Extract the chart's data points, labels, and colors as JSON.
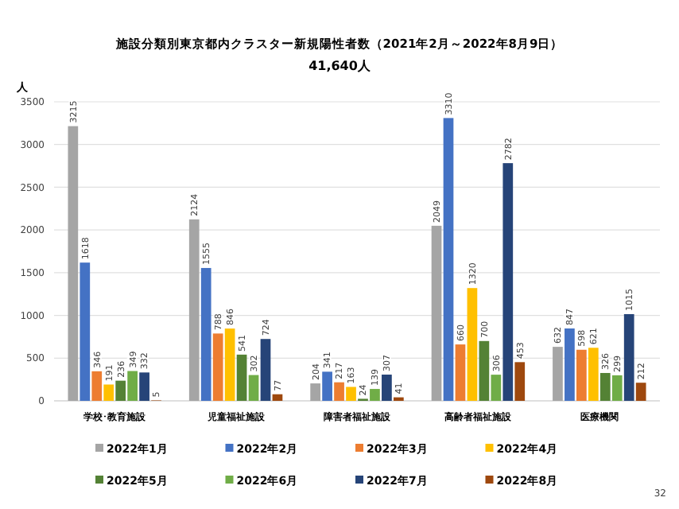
{
  "chart_data": {
    "type": "bar",
    "title": "施設分類別東京都内クラスター新規陽性者数（2021年2月～2022年8月9日）",
    "subtitle": "41,640人",
    "ylabel": "人",
    "categories": [
      "学校･教育施設",
      "児童福祉施設",
      "障害者福祉施設",
      "高齢者福祉施設",
      "医療機関"
    ],
    "series": [
      {
        "name": "2022年1月",
        "color": "#a5a5a5",
        "values": [
          3215,
          2124,
          204,
          2049,
          632
        ]
      },
      {
        "name": "2022年2月",
        "color": "#4472c4",
        "values": [
          1618,
          1555,
          341,
          3310,
          847
        ]
      },
      {
        "name": "2022年3月",
        "color": "#ed7d31",
        "values": [
          346,
          788,
          217,
          660,
          598
        ]
      },
      {
        "name": "2022年4月",
        "color": "#ffc000",
        "values": [
          191,
          846,
          163,
          1320,
          621
        ]
      },
      {
        "name": "2022年5月",
        "color": "#548235",
        "values": [
          236,
          541,
          24,
          700,
          326
        ]
      },
      {
        "name": "2022年6月",
        "color": "#70ad47",
        "values": [
          349,
          302,
          139,
          306,
          299
        ]
      },
      {
        "name": "2022年7月",
        "color": "#264478",
        "values": [
          332,
          724,
          307,
          2782,
          1015
        ]
      },
      {
        "name": "2022年8月",
        "color": "#9e480e",
        "values": [
          5,
          77,
          41,
          453,
          212
        ]
      }
    ],
    "ylim": [
      0,
      3500
    ],
    "yticks": [
      0,
      500,
      1000,
      1500,
      2000,
      2500,
      3000,
      3500
    ],
    "grid": "y",
    "legend": "bottom",
    "data_labels": true,
    "annotations": [
      "32"
    ]
  }
}
